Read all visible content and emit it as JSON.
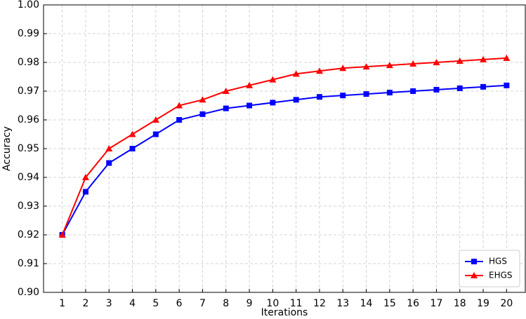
{
  "chart_data": {
    "type": "line",
    "xlabel": "Iterations",
    "ylabel": "Accuracy",
    "x": [
      1,
      2,
      3,
      4,
      5,
      6,
      7,
      8,
      9,
      10,
      11,
      12,
      13,
      14,
      15,
      16,
      17,
      18,
      19,
      20
    ],
    "series": [
      {
        "name": "HGS",
        "color": "#0000ff",
        "marker": "square",
        "values": [
          0.92,
          0.935,
          0.945,
          0.95,
          0.955,
          0.96,
          0.962,
          0.964,
          0.965,
          0.966,
          0.967,
          0.968,
          0.9685,
          0.969,
          0.9695,
          0.97,
          0.9705,
          0.971,
          0.9715,
          0.972
        ]
      },
      {
        "name": "EHGS",
        "color": "#ff0000",
        "marker": "triangle",
        "values": [
          0.92,
          0.94,
          0.95,
          0.955,
          0.96,
          0.965,
          0.967,
          0.97,
          0.972,
          0.974,
          0.976,
          0.977,
          0.978,
          0.9785,
          0.979,
          0.9795,
          0.98,
          0.9805,
          0.981,
          0.9815
        ]
      }
    ],
    "xlim": [
      0.2,
      20.8
    ],
    "xticks": [
      1,
      2,
      3,
      4,
      5,
      6,
      7,
      8,
      9,
      10,
      11,
      12,
      13,
      14,
      15,
      16,
      17,
      18,
      19,
      20
    ],
    "ylim": [
      0.9,
      1.0
    ],
    "yticks": [
      {
        "value": 0.9,
        "label": "0.90"
      },
      0.91,
      0.92,
      0.93,
      0.94,
      0.95,
      0.96,
      0.97,
      0.98,
      0.99,
      {
        "value": 1.0,
        "label": "1.00"
      }
    ],
    "grid": true,
    "legend": "lower right"
  }
}
